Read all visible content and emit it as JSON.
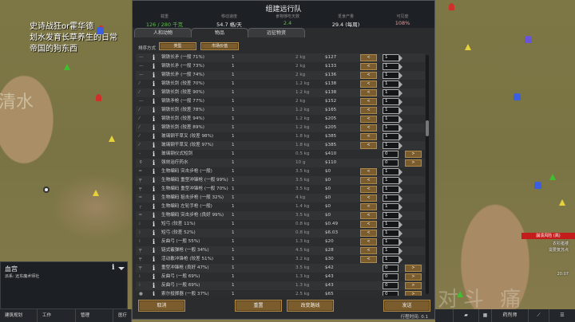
{
  "map": {
    "label": "清水",
    "overlay_lines": [
      "史诗战狂or霍华德",
      "划水发育长草养生的日常",
      "帝国的狗东西"
    ],
    "watermark": "对斗 痛"
  },
  "dialog": {
    "title": "组建远行队",
    "stats": [
      {
        "label": "载重",
        "value": "126 / 280 千克",
        "color": "#5fbf4a"
      },
      {
        "label": "移动速度",
        "value": "54.7 格/天",
        "color": "#eeeeee"
      },
      {
        "label": "食物够吃天数",
        "value": "2.4",
        "color": "#5fbf4a"
      },
      {
        "label": "觅食产量",
        "value": "29.4 (每周)",
        "color": "#eeeeee"
      },
      {
        "label": "可见度",
        "value": "108%",
        "color": "#e89a9a"
      }
    ],
    "tabs": [
      {
        "label": "人和动物",
        "active": false
      },
      {
        "label": "物品",
        "active": true
      },
      {
        "label": "远征物资",
        "active": false
      }
    ],
    "sort": {
      "label": "排序方式",
      "primary": "类型",
      "secondary": "市场价值"
    },
    "items": [
      {
        "icon": "spear",
        "name": "钢铁长矛 (一般 71%)",
        "count": "1",
        "mass": "2 kg",
        "value": "$127",
        "transfer": "1"
      },
      {
        "icon": "spear",
        "name": "钢铁长矛 (一般 73%)",
        "count": "1",
        "mass": "2 kg",
        "value": "$133",
        "transfer": "1"
      },
      {
        "icon": "spear",
        "name": "钢铁长矛 (一般 74%)",
        "count": "1",
        "mass": "2 kg",
        "value": "$136",
        "transfer": "1"
      },
      {
        "icon": "sword",
        "name": "钢铁长剑 (较差 70%)",
        "count": "1",
        "mass": "1.2 kg",
        "value": "$138",
        "transfer": "1"
      },
      {
        "icon": "sword",
        "name": "钢铁长剑 (较差 90%)",
        "count": "1",
        "mass": "1.2 kg",
        "value": "$138",
        "transfer": "1"
      },
      {
        "icon": "spear",
        "name": "钢铁矛枪 (一般 77%)",
        "count": "1",
        "mass": "2 kg",
        "value": "$152",
        "transfer": "1"
      },
      {
        "icon": "sword",
        "name": "钢铁长剑 (较差 78%)",
        "count": "1",
        "mass": "1.2 kg",
        "value": "$165",
        "transfer": "1"
      },
      {
        "icon": "sword",
        "name": "钢铁长剑 (较差 94%)",
        "count": "1",
        "mass": "1.2 kg",
        "value": "$205",
        "transfer": "1"
      },
      {
        "icon": "sword",
        "name": "钢铁长剑 (较差 89%)",
        "count": "1",
        "mass": "1.2 kg",
        "value": "$205",
        "transfer": "1"
      },
      {
        "icon": "pitchfork",
        "name": "玻璃钢干草叉 (较差 98%)",
        "count": "1",
        "mass": "1.8 kg",
        "value": "$385",
        "transfer": "1"
      },
      {
        "icon": "pitchfork",
        "name": "玻璃钢干草叉 (较差 97%)",
        "count": "1",
        "mass": "1.8 kg",
        "value": "$385",
        "transfer": "1"
      },
      {
        "icon": "knife",
        "name": "玻璃钢仪式短剑",
        "count": "1",
        "mass": "0.5 kg",
        "value": "$410",
        "transfer": "0"
      },
      {
        "icon": "potion",
        "name": "强效治疗药水",
        "count": "1",
        "mass": "10 g",
        "value": "$110",
        "transfer": "0"
      },
      {
        "icon": "rifle",
        "name": "生物编码 突击步枪 (一般)",
        "count": "1",
        "mass": "3.5 kg",
        "value": "$0",
        "transfer": "1"
      },
      {
        "icon": "smg",
        "name": "生物编码 重型冲锋枪 (一般 99%)",
        "count": "1",
        "mass": "3.5 kg",
        "value": "$0",
        "transfer": "1"
      },
      {
        "icon": "smg",
        "name": "生物编码 重型冲锋枪 (一般 70%)",
        "count": "1",
        "mass": "3.5 kg",
        "value": "$0",
        "transfer": "1"
      },
      {
        "icon": "rifle",
        "name": "生物编码 狙击步枪 (一般 32%)",
        "count": "1",
        "mass": "4 kg",
        "value": "$0",
        "transfer": "1"
      },
      {
        "icon": "revolver",
        "name": "生物编码 左轮手枪 (一般)",
        "count": "1",
        "mass": "1.4 kg",
        "value": "$0",
        "transfer": "1"
      },
      {
        "icon": "rifle",
        "name": "生物编码 突击步枪 (良好 99%)",
        "count": "1",
        "mass": "3.5 kg",
        "value": "$0",
        "transfer": "1"
      },
      {
        "icon": "bow",
        "name": "短弓 (较差 11%)",
        "count": "1",
        "mass": "0.8 kg",
        "value": "$0.49",
        "transfer": "1"
      },
      {
        "icon": "bow",
        "name": "短弓 (较差 52%)",
        "count": "1",
        "mass": "0.8 kg",
        "value": "$6.03",
        "transfer": "1"
      },
      {
        "icon": "bow",
        "name": "反曲弓 (一般 55%)",
        "count": "1",
        "mass": "1.3 kg",
        "value": "$20",
        "transfer": "1"
      },
      {
        "icon": "shotgun",
        "name": "链式霰弹枪 (一般 34%)",
        "count": "1",
        "mass": "4.5 kg",
        "value": "$28",
        "transfer": "1"
      },
      {
        "icon": "smg",
        "name": "活动散冲锋枪 (较差 51%)",
        "count": "1",
        "mass": "3.2 kg",
        "value": "$30",
        "transfer": "1"
      },
      {
        "icon": "smg",
        "name": "重型冲锋枪 (良好 47%)",
        "count": "1",
        "mass": "3.5 kg",
        "value": "$42",
        "transfer": "0"
      },
      {
        "icon": "bow",
        "name": "反曲弓 (一般 69%)",
        "count": "1",
        "mass": "1.3 kg",
        "value": "$43",
        "transfer": "0"
      },
      {
        "icon": "bow",
        "name": "反曲弓 (一般 69%)",
        "count": "1",
        "mass": "1.3 kg",
        "value": "$43",
        "transfer": "0"
      },
      {
        "icon": "grenade",
        "name": "索尔投掷器 (一般 37%)",
        "count": "1",
        "mass": "2.5 kg",
        "value": "$65",
        "transfer": "0"
      }
    ],
    "less_label": "<",
    "more_label": ">",
    "buttons": {
      "cancel": "取消",
      "reset": "重置",
      "change_route": "改变路线",
      "send": "发送"
    },
    "travel_time": "行程时间: 0.1"
  },
  "info_panel": {
    "title": "血宫",
    "subtitle": "派系: 远东魔术师社"
  },
  "bottom_tabs": [
    "建筑规划",
    "工作",
    "管理",
    "医疗"
  ],
  "right_panel": {
    "alert": "崩溃风险 (高)",
    "lines": [
      "衣衫褴褛",
      "需要复苏点"
    ],
    "time": "20:07",
    "button": "药剂师"
  }
}
